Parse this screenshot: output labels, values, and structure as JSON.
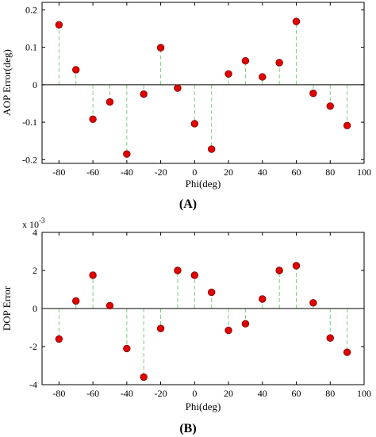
{
  "colors": {
    "marker_fill": "#e00000",
    "marker_stroke": "#7a0000",
    "stem": "#7ccf7c",
    "zero_line": "#000000",
    "axis": "#000000"
  },
  "chart_data": [
    {
      "type": "scatter",
      "style": "stem",
      "caption": "(A)",
      "xlabel": "Phi(deg)",
      "ylabel": "AOP Error(deg)",
      "exponent_label": "",
      "xlim": [
        -90,
        100
      ],
      "ylim": [
        -0.21,
        0.22
      ],
      "x_ticks": [
        -80,
        -60,
        -40,
        -20,
        0,
        20,
        40,
        60,
        80,
        100
      ],
      "x_tick_labels": [
        "-80",
        "-60",
        "-40",
        "-20",
        "0",
        "20",
        "40",
        "60",
        "80",
        "100"
      ],
      "y_ticks": [
        -0.2,
        -0.1,
        0,
        0.1,
        0.2
      ],
      "y_tick_labels": [
        "-0.2",
        "-0.1",
        "0",
        "0.1",
        "0.2"
      ],
      "grid": false,
      "series": [
        {
          "x": [
            -80,
            -70,
            -60,
            -50,
            -40,
            -30,
            -20,
            -10,
            0,
            10,
            20,
            30,
            40,
            50,
            60,
            70,
            80,
            90
          ],
          "y": [
            0.16,
            0.04,
            -0.092,
            -0.046,
            -0.185,
            -0.025,
            0.099,
            -0.009,
            -0.104,
            -0.172,
            0.029,
            0.064,
            0.021,
            0.059,
            0.169,
            -0.023,
            -0.057,
            -0.109
          ]
        }
      ]
    },
    {
      "type": "scatter",
      "style": "stem",
      "caption": "(B)",
      "xlabel": "Phi(deg)",
      "ylabel": "DOP Error",
      "exponent_label": "x 10",
      "exponent_power": "-3",
      "xlim": [
        -90,
        100
      ],
      "ylim": [
        -4,
        4
      ],
      "x_ticks": [
        -80,
        -60,
        -40,
        -20,
        0,
        20,
        40,
        60,
        80,
        100
      ],
      "x_tick_labels": [
        "-80",
        "-60",
        "-40",
        "-20",
        "0",
        "20",
        "40",
        "60",
        "80",
        "100"
      ],
      "y_ticks": [
        -4,
        -2,
        0,
        2,
        4
      ],
      "y_tick_labels": [
        "-4",
        "-2",
        "0",
        "2",
        "4"
      ],
      "grid": false,
      "series": [
        {
          "x": [
            -80,
            -70,
            -60,
            -50,
            -40,
            -30,
            -20,
            -10,
            0,
            10,
            20,
            30,
            40,
            50,
            60,
            70,
            80,
            90
          ],
          "y": [
            -1.6,
            0.4,
            1.75,
            0.15,
            -2.1,
            -3.6,
            -1.05,
            2.0,
            1.75,
            0.85,
            -1.15,
            -0.8,
            0.5,
            2.0,
            2.25,
            0.3,
            -1.55,
            -2.3
          ]
        }
      ]
    }
  ]
}
